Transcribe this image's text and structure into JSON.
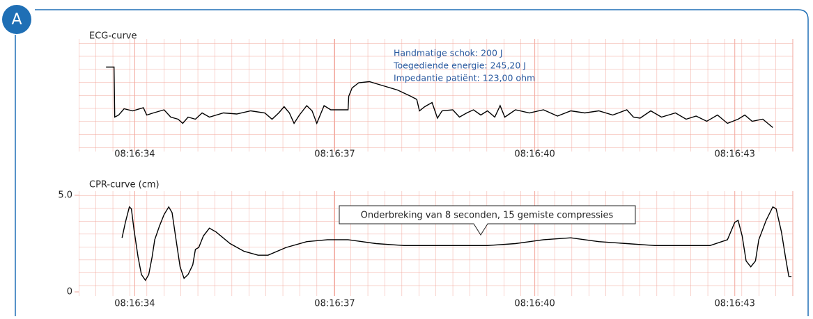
{
  "badge": "A",
  "chart_data": [
    {
      "type": "line",
      "title": "ECG-curve",
      "annotations": [
        "Handmatige schok: 200 J",
        "Toegediende energie: 245,20 J",
        "Impedantie patiënt: 123,00 ohm"
      ],
      "x": [
        33.57,
        33.69,
        33.7,
        33.76,
        33.84,
        33.97,
        34.13,
        34.18,
        34.28,
        34.44,
        34.54,
        34.65,
        34.72,
        34.8,
        34.91,
        35.01,
        35.12,
        35.33,
        35.53,
        35.74,
        35.95,
        36.06,
        36.16,
        36.24,
        36.32,
        36.39,
        36.47,
        36.58,
        36.66,
        36.73,
        36.84,
        36.94,
        37.2,
        37.21,
        37.26,
        37.36,
        37.52,
        37.73,
        37.94,
        38.14,
        38.23,
        38.27,
        38.35,
        38.46,
        38.54,
        38.61,
        38.77,
        38.87,
        38.98,
        39.08,
        39.19,
        39.29,
        39.4,
        39.48,
        39.55,
        39.71,
        39.92,
        40.13,
        40.34,
        40.54,
        40.75,
        40.96,
        41.17,
        41.38,
        41.48,
        41.58,
        41.74,
        41.9,
        42.11,
        42.27,
        42.42,
        42.58,
        42.74,
        42.89,
        43.05,
        43.15,
        43.26,
        43.42,
        43.57
      ],
      "series": [
        {
          "color": "#000000",
          "values": [
            7.7,
            7.7,
            2.9,
            3.1,
            3.7,
            3.5,
            3.8,
            3.1,
            3.3,
            3.6,
            2.9,
            2.7,
            2.3,
            2.9,
            2.7,
            3.3,
            2.9,
            3.3,
            3.2,
            3.5,
            3.3,
            2.7,
            3.3,
            3.9,
            3.3,
            2.3,
            3.1,
            4.0,
            3.5,
            2.3,
            4.0,
            3.6,
            3.6,
            4.9,
            5.7,
            6.2,
            6.3,
            5.9,
            5.5,
            4.9,
            4.6,
            3.5,
            3.9,
            4.3,
            2.8,
            3.5,
            3.6,
            2.9,
            3.3,
            3.6,
            3.1,
            3.5,
            2.9,
            4.0,
            2.9,
            3.6,
            3.3,
            3.6,
            3.0,
            3.5,
            3.3,
            3.5,
            3.1,
            3.6,
            2.9,
            2.8,
            3.5,
            2.9,
            3.3,
            2.7,
            3.0,
            2.5,
            3.1,
            2.3,
            2.7,
            3.1,
            2.5,
            2.7,
            1.9
          ]
        }
      ],
      "xlim": [
        33.16,
        43.87
      ],
      "xticks": [
        {
          "value": 34,
          "label": "08:16:34"
        },
        {
          "value": 37,
          "label": "08:16:37"
        },
        {
          "value": 40,
          "label": "08:16:40"
        },
        {
          "value": 43,
          "label": "08:16:43"
        }
      ],
      "ylim": [
        0,
        10
      ],
      "grid": true,
      "grid_color": "#f2a79c"
    },
    {
      "type": "line",
      "title": "CPR-curve (cm)",
      "callout": "Onderbreking van 8 seconden, 15 gemiste compressies",
      "x": [
        33.81,
        33.86,
        33.92,
        33.95,
        33.99,
        34.05,
        34.1,
        34.16,
        34.21,
        34.26,
        34.3,
        34.37,
        34.44,
        34.51,
        34.56,
        34.62,
        34.68,
        34.74,
        34.8,
        34.87,
        34.91,
        34.96,
        35.03,
        35.12,
        35.22,
        35.43,
        35.64,
        35.85,
        36.0,
        36.27,
        36.58,
        36.89,
        37.2,
        37.62,
        38.04,
        38.67,
        39.29,
        39.71,
        40.13,
        40.54,
        40.96,
        41.38,
        41.8,
        42.22,
        42.63,
        42.89,
        43.0,
        43.05,
        43.11,
        43.17,
        43.24,
        43.31,
        43.36,
        43.47,
        43.57,
        43.62,
        43.7,
        43.76,
        43.81,
        43.85
      ],
      "series": [
        {
          "color": "#000000",
          "values": [
            2.8,
            3.6,
            4.4,
            4.3,
            3.2,
            1.8,
            0.9,
            0.6,
            0.9,
            1.8,
            2.7,
            3.4,
            4.0,
            4.4,
            4.1,
            2.7,
            1.3,
            0.7,
            0.9,
            1.4,
            2.2,
            2.3,
            2.9,
            3.3,
            3.1,
            2.5,
            2.1,
            1.9,
            1.9,
            2.3,
            2.6,
            2.7,
            2.7,
            2.5,
            2.4,
            2.4,
            2.4,
            2.5,
            2.7,
            2.8,
            2.6,
            2.5,
            2.4,
            2.4,
            2.4,
            2.7,
            3.6,
            3.7,
            2.9,
            1.6,
            1.3,
            1.6,
            2.7,
            3.7,
            4.4,
            4.3,
            3.1,
            1.8,
            0.8,
            0.8
          ]
        }
      ],
      "xlim": [
        33.16,
        43.87
      ],
      "xticks": [
        {
          "value": 34,
          "label": "08:16:34"
        },
        {
          "value": 37,
          "label": "08:16:37"
        },
        {
          "value": 40,
          "label": "08:16:40"
        },
        {
          "value": 43,
          "label": "08:16:43"
        }
      ],
      "ylim": [
        0,
        5
      ],
      "yticks": [
        0,
        {
          "value": 5,
          "label": "5.0"
        }
      ],
      "grid": true,
      "grid_color": "#f2a79c"
    }
  ]
}
